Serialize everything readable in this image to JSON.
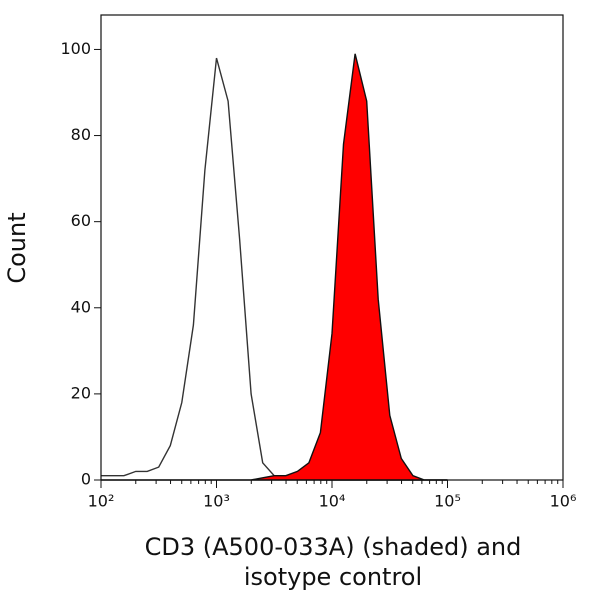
{
  "chart_data": {
    "type": "histogram-overlay",
    "y_label": "Count",
    "x_label": "CD3 (A500-033A) (shaded) and isotype control",
    "x_scale": "log",
    "x": [
      100,
      126,
      158,
      200,
      251,
      316,
      398,
      501,
      631,
      794,
      1000,
      1259,
      1585,
      1995,
      2512,
      3162,
      3981,
      5012,
      6310,
      7943,
      10000,
      12589,
      15849,
      19953,
      25119,
      31623,
      39811,
      50119,
      63096,
      79433,
      100000
    ],
    "series": [
      {
        "name": "isotype control",
        "color": "#333333",
        "filled": false,
        "values": [
          1,
          1,
          1,
          2,
          2,
          3,
          8,
          18,
          36,
          72,
          98,
          88,
          56,
          20,
          4,
          1,
          0.5,
          0.5,
          0.5,
          0,
          0,
          0,
          0,
          0,
          0,
          0,
          0,
          0,
          0,
          0,
          0
        ]
      },
      {
        "name": "CD3 (A500-033A)",
        "color": "#ff0000",
        "filled": true,
        "values": [
          0,
          0,
          0,
          0,
          0,
          0,
          0,
          0,
          0,
          0,
          0,
          0,
          0,
          0,
          0.5,
          1,
          1,
          2,
          4,
          11,
          34,
          78,
          99,
          88,
          42,
          15,
          5,
          1,
          0,
          0,
          0
        ]
      }
    ],
    "xlim": [
      100,
      1000000
    ],
    "xticks": [
      {
        "value": 100,
        "label": "10²"
      },
      {
        "value": 1000,
        "label": "10³"
      },
      {
        "value": 10000,
        "label": "10⁴"
      },
      {
        "value": 100000,
        "label": "10⁵"
      },
      {
        "value": 1000000,
        "label": "10⁶"
      }
    ],
    "ylim": [
      0,
      108
    ],
    "yticks": [
      0,
      20,
      40,
      60,
      80,
      100
    ]
  }
}
